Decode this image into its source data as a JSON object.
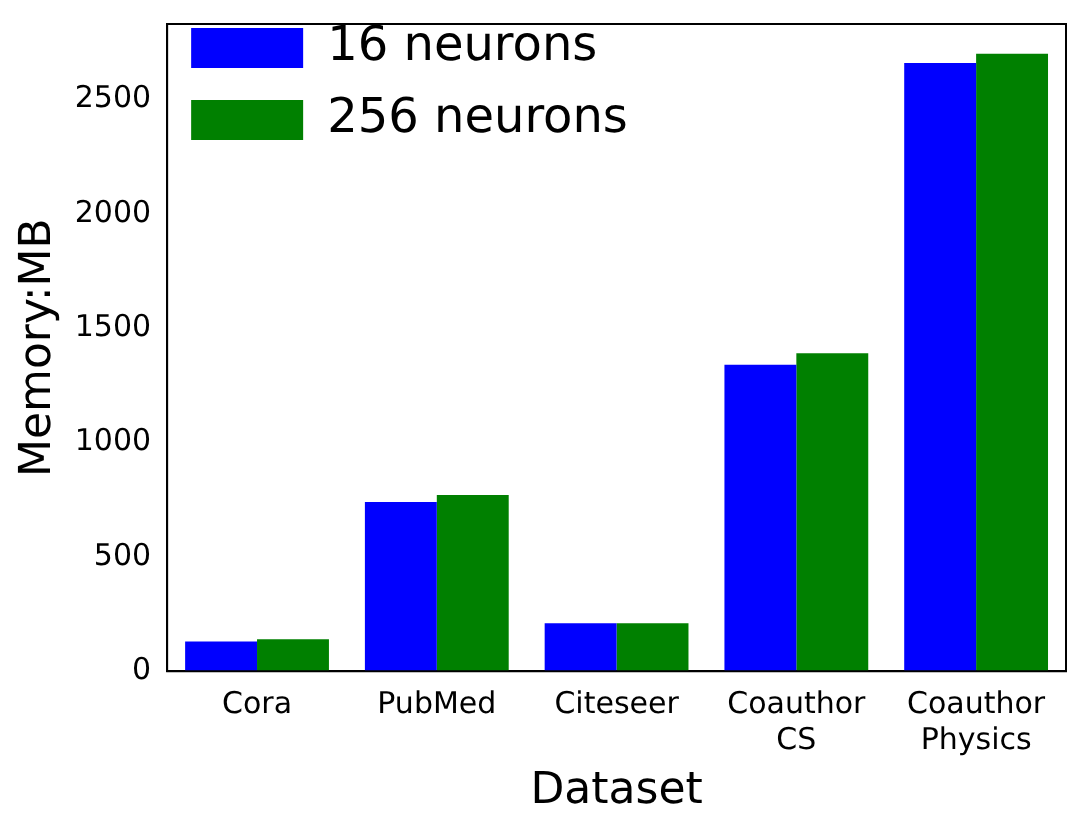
{
  "chart_data": {
    "type": "bar",
    "xlabel": "Dataset",
    "ylabel": "Memory:MB",
    "categories": [
      "Cora",
      "PubMed",
      "Citeseer",
      "Coauthor\nCS",
      "Coauthor\nPhysics"
    ],
    "series": [
      {
        "name": "16 neurons",
        "color": "#0000ff",
        "values": [
          130,
          740,
          210,
          1340,
          2660
        ]
      },
      {
        "name": "256 neurons",
        "color": "#008000",
        "values": [
          140,
          770,
          210,
          1390,
          2700
        ]
      }
    ],
    "ylim": [
      0,
      2830
    ],
    "yticks": [
      0,
      500,
      1000,
      1500,
      2000,
      2500
    ],
    "grid": false,
    "legend": "top left"
  }
}
